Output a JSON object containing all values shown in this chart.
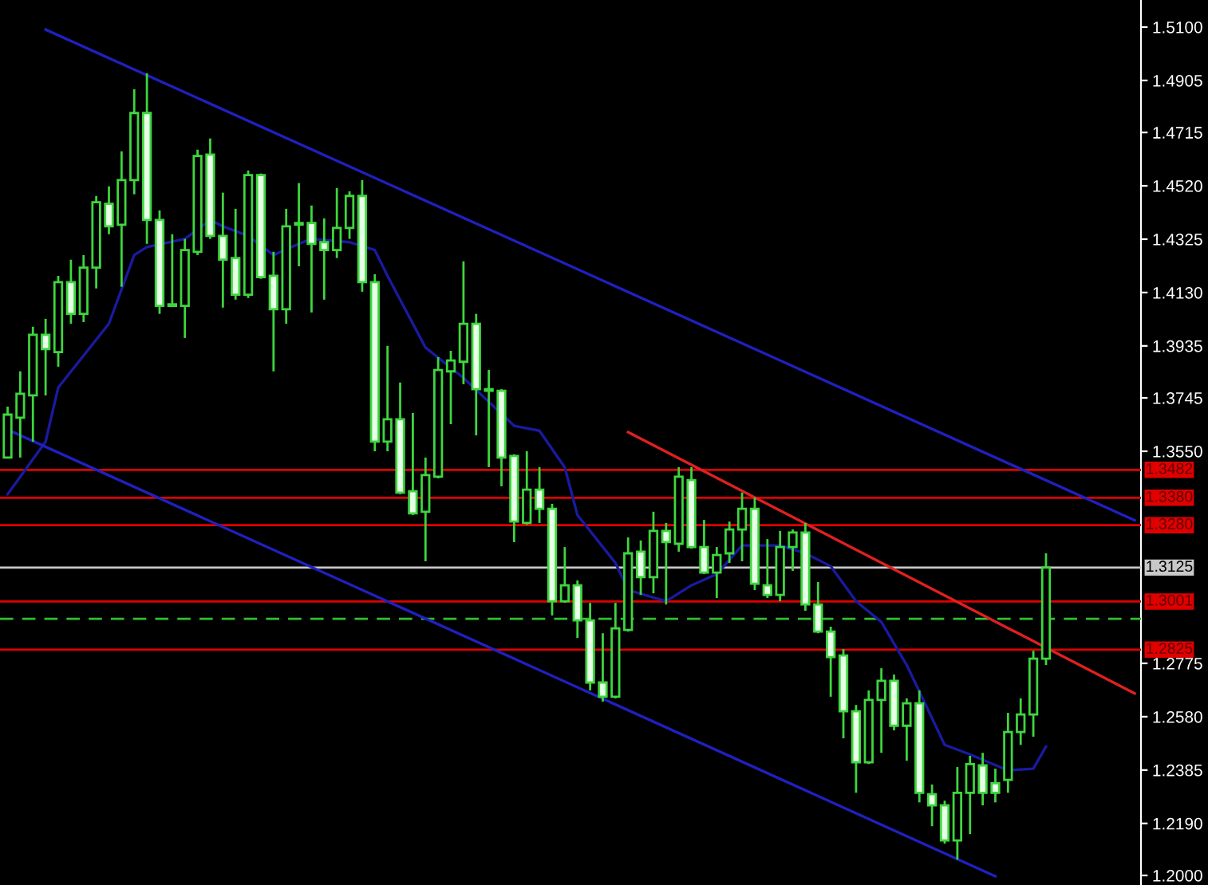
{
  "chart_data": {
    "type": "candlestick",
    "categories": [
      null,
      null,
      null,
      null,
      null,
      null,
      null,
      null,
      null,
      null,
      null,
      null,
      null,
      null,
      null,
      null,
      null,
      null,
      null,
      null,
      null,
      null,
      null,
      null,
      null,
      null,
      null,
      null,
      null,
      null,
      null,
      null,
      null,
      null,
      null,
      null,
      null,
      null,
      null,
      null,
      null,
      null,
      null,
      null,
      null,
      null,
      null,
      null,
      null,
      null,
      null,
      null,
      null,
      null,
      null,
      null,
      null,
      null,
      null,
      null,
      null,
      null,
      null,
      null,
      null,
      null,
      null,
      null,
      null,
      null,
      null,
      null,
      null,
      null,
      null,
      null,
      null,
      null,
      null,
      null,
      null,
      null,
      null,
      null,
      null,
      null,
      null,
      null,
      null,
      null
    ],
    "ohlc": [
      [
        1.3527,
        1.3713,
        1.3527,
        1.3684
      ],
      [
        1.3673,
        1.3842,
        1.3527,
        1.376
      ],
      [
        1.3754,
        1.4005,
        1.3585,
        1.3976
      ],
      [
        1.3976,
        1.4034,
        1.3754,
        1.3923
      ],
      [
        1.3912,
        1.4191,
        1.3859,
        1.4168
      ],
      [
        1.4168,
        1.425,
        1.4016,
        1.4052
      ],
      [
        1.4052,
        1.4267,
        1.4022,
        1.4221
      ],
      [
        1.4221,
        1.4483,
        1.4145,
        1.446
      ],
      [
        1.4454,
        1.4518,
        1.4343,
        1.4372
      ],
      [
        1.4378,
        1.4646,
        1.4151,
        1.4541
      ],
      [
        1.4541,
        1.4873,
        1.4489,
        1.4786
      ],
      [
        1.4786,
        1.4931,
        1.4308,
        1.4395
      ],
      [
        1.4395,
        1.443,
        1.4052,
        1.4081
      ],
      [
        1.4081,
        1.4343,
        1.4081,
        1.4087
      ],
      [
        1.4081,
        1.4326,
        1.3964,
        1.4285
      ],
      [
        1.4279,
        1.4652,
        1.4267,
        1.4629
      ],
      [
        1.4634,
        1.4693,
        1.4326,
        1.4337
      ],
      [
        1.4337,
        1.4495,
        1.4075,
        1.425
      ],
      [
        1.4256,
        1.4436,
        1.4104,
        1.4122
      ],
      [
        1.4122,
        1.4576,
        1.411,
        1.4559
      ],
      [
        1.4559,
        1.4565,
        1.418,
        1.4186
      ],
      [
        1.4191,
        1.4279,
        1.3842,
        1.4069
      ],
      [
        1.4069,
        1.4436,
        1.4016,
        1.4372
      ],
      [
        1.4378,
        1.453,
        1.4226,
        1.4384
      ],
      [
        1.4384,
        1.4448,
        1.4057,
        1.4308
      ],
      [
        1.4314,
        1.4401,
        1.4104,
        1.4285
      ],
      [
        1.4285,
        1.4512,
        1.4256,
        1.4366
      ],
      [
        1.4366,
        1.45,
        1.4326,
        1.4483
      ],
      [
        1.4483,
        1.4541,
        1.4133,
        1.4168
      ],
      [
        1.4168,
        1.4197,
        1.355,
        1.3585
      ],
      [
        1.3585,
        1.3935,
        1.355,
        1.3667
      ],
      [
        1.3667,
        1.3801,
        1.3393,
        1.3399
      ],
      [
        1.3404,
        1.369,
        1.3317,
        1.3323
      ],
      [
        1.3329,
        1.3527,
        1.3148,
        1.3463
      ],
      [
        1.3457,
        1.3894,
        1.3451,
        1.3847
      ],
      [
        1.3842,
        1.3917,
        1.3649,
        1.3882
      ],
      [
        1.3877,
        1.4244,
        1.3795,
        1.4016
      ],
      [
        1.4016,
        1.4052,
        1.3608,
        1.3777
      ],
      [
        1.3777,
        1.3847,
        1.3492,
        1.3771
      ],
      [
        1.3771,
        1.3777,
        1.3422,
        1.3527
      ],
      [
        1.3533,
        1.3539,
        1.3218,
        1.3293
      ],
      [
        1.3288,
        1.355,
        1.3282,
        1.341
      ],
      [
        1.341,
        1.3492,
        1.3288,
        1.334
      ],
      [
        1.334,
        1.3358,
        1.295,
        1.3002
      ],
      [
        1.3002,
        1.32,
        1.2996,
        1.306
      ],
      [
        1.306,
        1.3078,
        1.2868,
        1.2932
      ],
      [
        1.2932,
        1.2996,
        1.2676,
        1.2705
      ],
      [
        1.2705,
        1.2885,
        1.2635,
        1.2653
      ],
      [
        1.2653,
        1.2996,
        1.2647,
        1.2903
      ],
      [
        1.2897,
        1.3235,
        1.2891,
        1.3177
      ],
      [
        1.3183,
        1.3224,
        1.3025,
        1.309
      ],
      [
        1.309,
        1.3329,
        1.3031,
        1.3259
      ],
      [
        1.3259,
        1.3288,
        1.299,
        1.3218
      ],
      [
        1.3212,
        1.3492,
        1.3183,
        1.3457
      ],
      [
        1.3445,
        1.3492,
        1.3194,
        1.32
      ],
      [
        1.32,
        1.3299,
        1.3101,
        1.3107
      ],
      [
        1.3107,
        1.32,
        1.3014,
        1.3171
      ],
      [
        1.3177,
        1.3293,
        1.3142,
        1.3264
      ],
      [
        1.3264,
        1.3399,
        1.3148,
        1.334
      ],
      [
        1.334,
        1.3381,
        1.3043,
        1.3066
      ],
      [
        1.306,
        1.3229,
        1.3014,
        1.3025
      ],
      [
        1.3025,
        1.3259,
        1.3002,
        1.32
      ],
      [
        1.32,
        1.3264,
        1.3113,
        1.3253
      ],
      [
        1.3253,
        1.3288,
        1.2967,
        1.299
      ],
      [
        1.299,
        1.3072,
        1.2885,
        1.2891
      ],
      [
        1.2891,
        1.2909,
        1.2653,
        1.2798
      ],
      [
        1.2804,
        1.2827,
        1.2501,
        1.26
      ],
      [
        1.26,
        1.2623,
        1.2302,
        1.2413
      ],
      [
        1.2413,
        1.2676,
        1.2407,
        1.2641
      ],
      [
        1.2641,
        1.2757,
        1.2448,
        1.2711
      ],
      [
        1.2711,
        1.2734,
        1.253,
        1.2547
      ],
      [
        1.2547,
        1.2647,
        1.2419,
        1.2629
      ],
      [
        1.2629,
        1.2676,
        1.2267,
        1.2302
      ],
      [
        1.2297,
        1.2332,
        1.218,
        1.2256
      ],
      [
        1.2256,
        1.2273,
        1.2116,
        1.2128
      ],
      [
        1.2128,
        1.2396,
        1.2058,
        1.2302
      ],
      [
        1.2302,
        1.2437,
        1.2151,
        1.2407
      ],
      [
        1.2402,
        1.2448,
        1.2256,
        1.2302
      ],
      [
        1.2337,
        1.239,
        1.2267,
        1.2302
      ],
      [
        1.2349,
        1.2594,
        1.2302,
        1.2524
      ],
      [
        1.2524,
        1.2647,
        1.2477,
        1.2588
      ],
      [
        1.2588,
        1.2821,
        1.2507,
        1.2792
      ],
      [
        1.2792,
        1.3177,
        1.2769,
        1.3125
      ],
      null,
      null,
      null,
      null,
      null,
      null,
      null
    ],
    "series": [
      {
        "type": "line",
        "color": "#1a1aa0",
        "values": [
          1.3393,
          null,
          null,
          1.3585,
          1.3783,
          null,
          null,
          null,
          1.4016,
          null,
          1.4267,
          1.4296,
          null,
          null,
          1.4326,
          null,
          1.4395,
          1.4372,
          null,
          1.4337,
          null,
          1.4267,
          null,
          1.4308,
          1.4326,
          null,
          null,
          1.4314,
          null,
          1.4285,
          1.4191,
          null,
          null,
          1.3929,
          null,
          null,
          1.3818,
          null,
          null,
          null,
          1.3643,
          null,
          1.3625,
          null,
          1.3491,
          1.3317,
          null,
          null,
          1.3142,
          1.3043,
          null,
          null,
          1.3002,
          null,
          1.306,
          null,
          1.3101,
          null,
          1.3206,
          null,
          null,
          1.3206,
          null,
          1.3177,
          null,
          1.313,
          null,
          1.3002,
          null,
          1.2926,
          null,
          1.2769,
          null,
          null,
          1.2477,
          null,
          1.2442,
          null,
          null,
          1.2384,
          null,
          1.239,
          1.2471,
          null,
          null,
          null,
          null,
          null,
          null,
          null
        ]
      },
      {
        "type": "line",
        "color": "#2020c0",
        "values": [
          null,
          null,
          null,
          1.5091,
          null,
          null,
          null,
          null,
          null,
          null,
          null,
          null,
          null,
          null,
          null,
          null,
          null,
          null,
          null,
          null,
          null,
          null,
          null,
          null,
          null,
          null,
          null,
          null,
          null,
          null,
          null,
          null,
          null,
          null,
          null,
          null,
          null,
          null,
          null,
          null,
          null,
          null,
          null,
          null,
          null,
          null,
          null,
          null,
          null,
          null,
          null,
          null,
          null,
          null,
          null,
          null,
          null,
          null,
          null,
          null,
          null,
          null,
          null,
          null,
          null,
          null,
          null,
          null,
          null,
          null,
          null,
          null,
          null,
          null,
          null,
          null,
          null,
          null,
          null,
          null,
          null,
          null,
          null,
          null,
          null,
          null,
          null,
          null,
          null,
          1.3298
        ]
      },
      {
        "type": "line",
        "color": "#2020c0",
        "values": [
          1.3629,
          null,
          null,
          null,
          null,
          null,
          null,
          null,
          null,
          null,
          null,
          null,
          null,
          null,
          null,
          null,
          null,
          null,
          null,
          null,
          null,
          null,
          null,
          null,
          null,
          null,
          null,
          null,
          null,
          null,
          null,
          null,
          null,
          null,
          null,
          null,
          null,
          null,
          null,
          null,
          null,
          null,
          null,
          null,
          null,
          null,
          null,
          null,
          null,
          null,
          null,
          null,
          null,
          null,
          null,
          null,
          null,
          null,
          null,
          null,
          null,
          null,
          null,
          null,
          null,
          null,
          null,
          null,
          null,
          null,
          null,
          null,
          null,
          null,
          null,
          null,
          null,
          null,
          1.1997,
          null,
          null,
          null,
          null,
          null,
          null,
          null,
          null,
          null,
          null,
          null
        ]
      },
      {
        "type": "line",
        "color": "#e02020",
        "values": [
          null,
          null,
          null,
          null,
          null,
          null,
          null,
          null,
          null,
          null,
          null,
          null,
          null,
          null,
          null,
          null,
          null,
          null,
          null,
          null,
          null,
          null,
          null,
          null,
          null,
          null,
          null,
          null,
          null,
          null,
          null,
          null,
          null,
          null,
          null,
          null,
          null,
          null,
          null,
          null,
          null,
          null,
          null,
          null,
          null,
          null,
          null,
          null,
          null,
          1.362,
          null,
          null,
          null,
          null,
          null,
          null,
          null,
          null,
          null,
          null,
          null,
          null,
          null,
          null,
          null,
          null,
          null,
          null,
          null,
          null,
          null,
          null,
          null,
          null,
          null,
          null,
          null,
          null,
          null,
          null,
          null,
          null,
          null,
          null,
          null,
          null,
          null,
          null,
          null,
          1.2665
        ]
      }
    ],
    "ref_lines": [
      {
        "axis": "y",
        "value": 1.3482,
        "label": "1.3482",
        "color": "#e00000"
      },
      {
        "axis": "y",
        "value": 1.338,
        "label": "1.3380",
        "color": "#e00000"
      },
      {
        "axis": "y",
        "value": 1.328,
        "label": "1.3280",
        "color": "#e00000"
      },
      {
        "axis": "y",
        "value": 1.3125,
        "label": "1.3125",
        "color": "#c8c8c8"
      },
      {
        "axis": "y",
        "value": 1.3001,
        "label": "1.3001",
        "color": "#e00000"
      },
      {
        "axis": "y",
        "value": 1.2938,
        "color": "#30c030",
        "line_style": "dashed"
      },
      {
        "axis": "y",
        "value": 1.2825,
        "label": "1.2825",
        "color": "#e00000"
      }
    ],
    "ylim": [
      1.1965,
      1.5199
    ],
    "yticks": [
      {
        "value": 1.51,
        "label": "1.5100"
      },
      {
        "value": 1.4905,
        "label": "1.4905"
      },
      {
        "value": 1.4715,
        "label": "1.4715"
      },
      {
        "value": 1.452,
        "label": "1.4520"
      },
      {
        "value": 1.4325,
        "label": "1.4325"
      },
      {
        "value": 1.413,
        "label": "1.4130"
      },
      {
        "value": 1.3935,
        "label": "1.3935"
      },
      {
        "value": 1.3745,
        "label": "1.3745"
      },
      {
        "value": 1.355,
        "label": "1.3550"
      },
      {
        "value": 1.2775,
        "label": "1.2775"
      },
      {
        "value": 1.258,
        "label": "1.2580"
      },
      {
        "value": 1.2385,
        "label": "1.2385"
      },
      {
        "value": 1.219,
        "label": "1.2190"
      },
      {
        "value": 1.2,
        "label": "1.2000"
      }
    ],
    "tick_labels": "y",
    "grid": false
  }
}
